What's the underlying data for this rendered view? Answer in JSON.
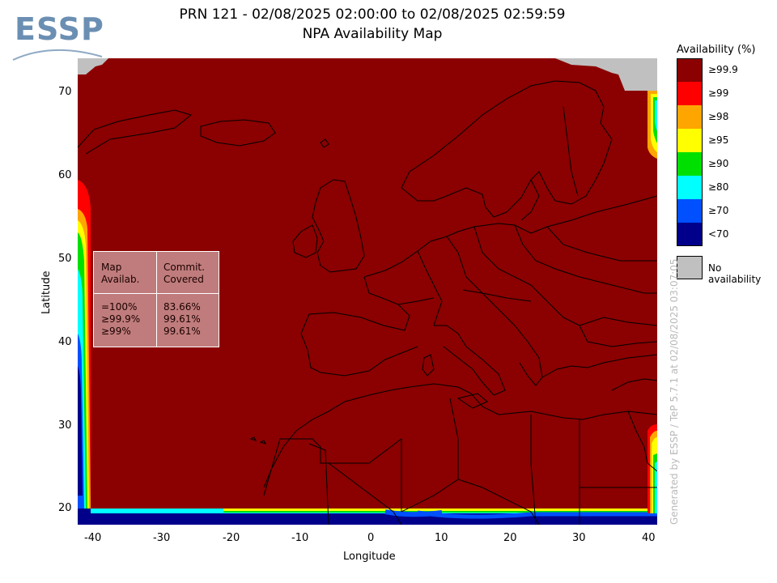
{
  "header": {
    "title_line1": "PRN 121 - 02/08/2025 02:00:00 to 02/08/2025 02:59:59",
    "title_line2": "NPA Availability Map",
    "logo_text": "ESSP"
  },
  "axes": {
    "x_label": "Longitude",
    "y_label": "Latitude",
    "x_ticks": [
      "-40",
      "-30",
      "-20",
      "-10",
      "0",
      "10",
      "20",
      "30",
      "40"
    ],
    "y_ticks": [
      "70",
      "60",
      "50",
      "40",
      "30",
      "20"
    ],
    "x_range": [
      -42,
      42
    ],
    "y_range": [
      18,
      74
    ]
  },
  "legend": {
    "title": "Availability (%)",
    "items": [
      {
        "label": "≥99.9",
        "color": "#8b0000"
      },
      {
        "label": "≥99",
        "color": "#ff0000"
      },
      {
        "label": "≥98",
        "color": "#ffa500"
      },
      {
        "label": "≥95",
        "color": "#ffff00"
      },
      {
        "label": "≥90",
        "color": "#00e000"
      },
      {
        "label": "≥80",
        "color": "#00ffff"
      },
      {
        "label": "≥70",
        "color": "#0050ff"
      },
      {
        "label": "<70",
        "color": "#00008b"
      }
    ],
    "no_availability": {
      "label": "No availability",
      "color": "#c0c0c0"
    }
  },
  "stats_box": {
    "col1_header": [
      "Map",
      "Availab."
    ],
    "col2_header": [
      "Commit.",
      "Covered"
    ],
    "rows": [
      {
        "map": "=100%",
        "covered": "83.66%"
      },
      {
        "map": "≥99.9%",
        "covered": "99.61%"
      },
      {
        "map": "≥99%",
        "covered": "99.61%"
      }
    ]
  },
  "watermark": "Generated by ESSP / TeP 5.7.1 at 02/08/2025 03:07:05",
  "colors": {
    "main_fill": "#8b0000",
    "no_data": "#c0c0c0"
  }
}
